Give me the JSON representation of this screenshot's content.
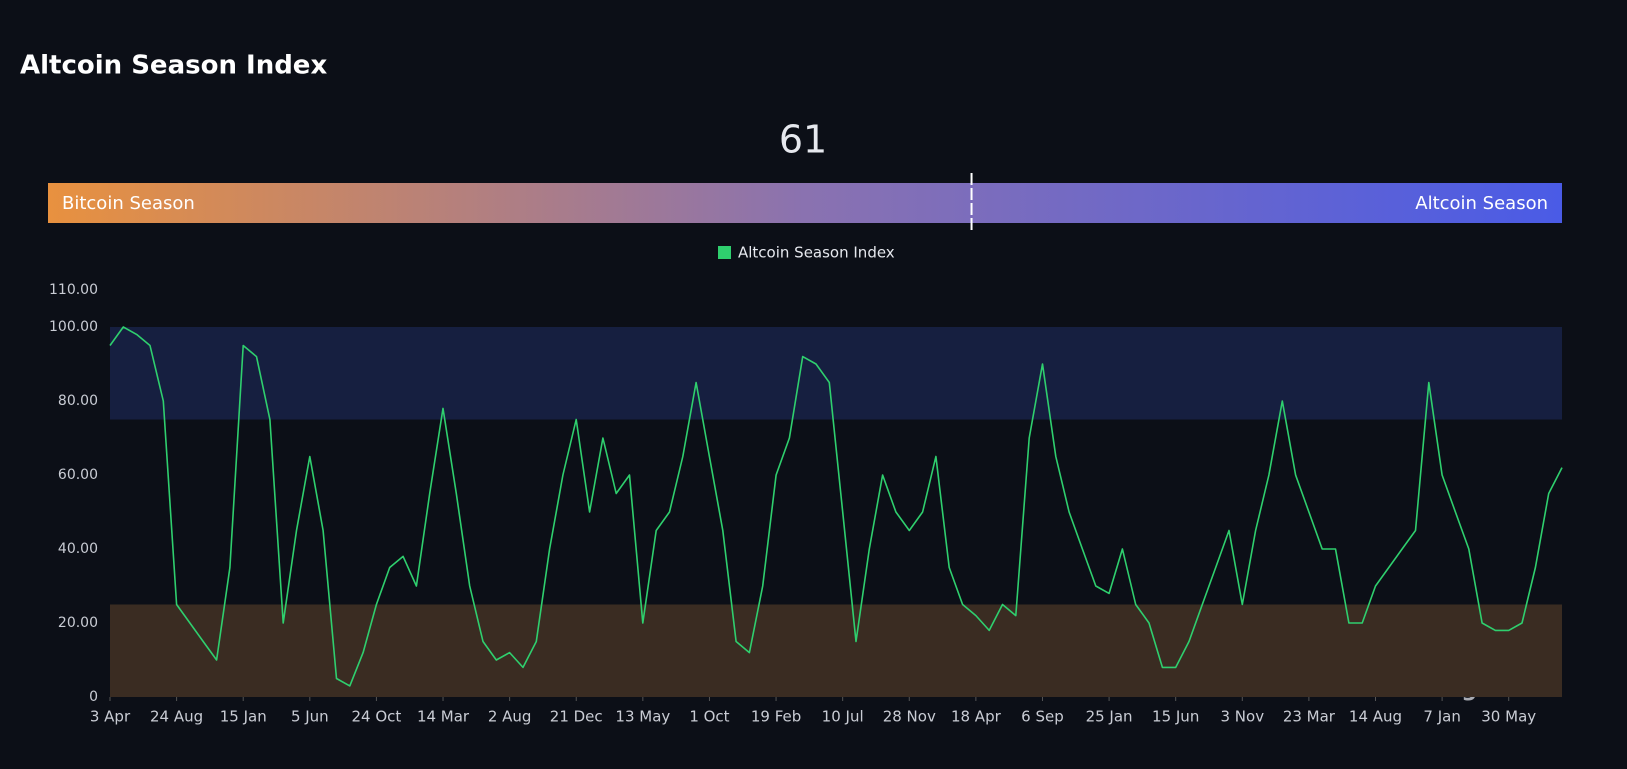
{
  "title": "Altcoin Season Index",
  "gauge": {
    "value": 61,
    "range": [
      0,
      100
    ],
    "left_label": "Bitcoin Season",
    "right_label": "Altcoin Season",
    "colors": [
      "#e8913f",
      "#8a72b0",
      "#4a5be6"
    ]
  },
  "watermark": "coinglass",
  "chart_data": {
    "type": "line",
    "categories": [
      "3 Apr",
      null,
      null,
      null,
      null,
      "24 Aug",
      null,
      null,
      null,
      null,
      "15 Jan",
      null,
      null,
      null,
      null,
      "5 Jun",
      null,
      null,
      null,
      null,
      "24 Oct",
      null,
      null,
      null,
      null,
      "14 Mar",
      null,
      null,
      null,
      null,
      "2 Aug",
      null,
      null,
      null,
      null,
      "21 Dec",
      null,
      null,
      null,
      null,
      "13 May",
      null,
      null,
      null,
      null,
      "1 Oct",
      null,
      null,
      null,
      null,
      "19 Feb",
      null,
      null,
      null,
      null,
      "10 Jul",
      null,
      null,
      null,
      null,
      "28 Nov",
      null,
      null,
      null,
      null,
      "18 Apr",
      null,
      null,
      null,
      null,
      "6 Sep",
      null,
      null,
      null,
      null,
      "25 Jan",
      null,
      null,
      null,
      null,
      "15 Jun",
      null,
      null,
      null,
      null,
      "3 Nov",
      null,
      null,
      null,
      null,
      "23 Mar",
      null,
      null,
      null,
      null,
      "14 Aug",
      null,
      null,
      null,
      null,
      "7 Jan",
      null,
      null,
      null,
      null,
      "30 May",
      null,
      null,
      null,
      null
    ],
    "series": [
      {
        "name": "Altcoin Season Index",
        "color": "#2fcf6e",
        "values": [
          95,
          100,
          98,
          95,
          80,
          25,
          20,
          15,
          10,
          35,
          95,
          92,
          75,
          20,
          45,
          65,
          45,
          5,
          3,
          12,
          25,
          35,
          38,
          30,
          55,
          78,
          55,
          30,
          15,
          10,
          12,
          8,
          15,
          40,
          60,
          75,
          50,
          70,
          55,
          60,
          20,
          45,
          50,
          65,
          85,
          65,
          45,
          15,
          12,
          30,
          60,
          70,
          92,
          90,
          85,
          50,
          15,
          40,
          60,
          50,
          45,
          50,
          65,
          35,
          25,
          22,
          18,
          25,
          22,
          70,
          90,
          65,
          50,
          40,
          30,
          28,
          40,
          25,
          20,
          8,
          8,
          15,
          25,
          35,
          45,
          25,
          45,
          60,
          80,
          60,
          50,
          40,
          40,
          20,
          20,
          30,
          35,
          40,
          45,
          85,
          60,
          50,
          40,
          20,
          18,
          18,
          20,
          35,
          55,
          62
        ]
      }
    ],
    "ylim": [
      0,
      110
    ],
    "yticks": [
      0,
      {
        "value": 20,
        "label": "20.00"
      },
      {
        "value": 40,
        "label": "40.00"
      },
      {
        "value": 60,
        "label": "60.00"
      },
      {
        "value": 80,
        "label": "80.00"
      },
      {
        "value": 100,
        "label": "100.00"
      },
      {
        "value": 110,
        "label": "110.00"
      }
    ],
    "bands": [
      {
        "from": 0,
        "to": 25,
        "color": "#3a2c22"
      },
      {
        "from": 75,
        "to": 100,
        "color": "#161f40"
      }
    ],
    "legend": "top"
  }
}
